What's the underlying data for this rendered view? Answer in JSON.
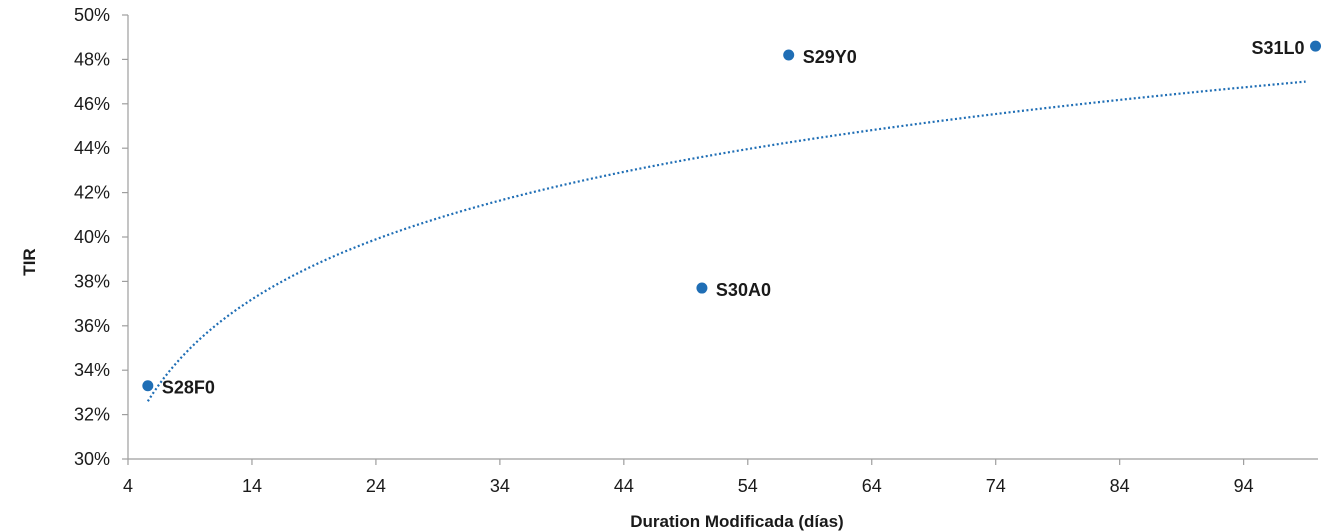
{
  "chart_data": {
    "type": "scatter",
    "title": "",
    "xlabel": "Duration Modificada (días)",
    "ylabel": "TIR",
    "xlim": [
      4,
      100
    ],
    "ylim": [
      30,
      50
    ],
    "x_ticks": [
      4,
      14,
      24,
      34,
      44,
      54,
      64,
      74,
      84,
      94
    ],
    "x_tick_labels": [
      "4",
      "14",
      "24",
      "34",
      "44",
      "54",
      "64",
      "74",
      "84",
      "94"
    ],
    "y_ticks": [
      30,
      32,
      34,
      36,
      38,
      40,
      42,
      44,
      46,
      48,
      50
    ],
    "y_tick_labels": [
      "30%",
      "32%",
      "34%",
      "36%",
      "38%",
      "40%",
      "42%",
      "44%",
      "46%",
      "48%",
      "50%"
    ],
    "grid": false,
    "points": [
      {
        "label": "S28F0",
        "x": 5.6,
        "y": 33.3
      },
      {
        "label": "S30A0",
        "x": 50.3,
        "y": 37.7
      },
      {
        "label": "S29Y0",
        "x": 57.3,
        "y": 48.2
      },
      {
        "label": "S31L0",
        "x": 99.8,
        "y": 48.6
      }
    ],
    "trendline": {
      "type": "logarithmic",
      "style": "dotted",
      "x_range": [
        5.6,
        99.0
      ],
      "y_start": 32.6,
      "y_end": 47.0
    },
    "colors": {
      "point": "#1f6eb5",
      "trendline": "#1f6eb5",
      "axis": "#9e9e9e",
      "text": "#1a1a1a"
    }
  }
}
